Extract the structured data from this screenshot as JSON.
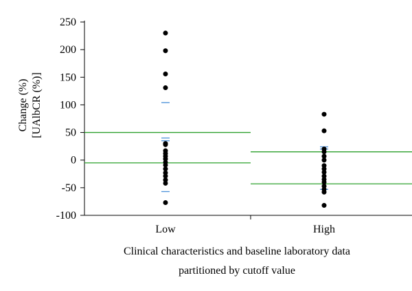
{
  "chart_data": {
    "type": "scatter",
    "ylabel_lines": [
      "Change (%)",
      "[UAlbCR (%)]"
    ],
    "xlabel_lines": [
      "Clinical characteristics and baseline laboratory data",
      "partitioned by cutoff value"
    ],
    "categories": [
      "Low",
      "High"
    ],
    "ylim": [
      -100,
      250
    ],
    "yticks": [
      -100,
      -50,
      0,
      50,
      100,
      150,
      200,
      250
    ],
    "grid": false,
    "series": [
      {
        "category": "Low",
        "values": [
          230,
          198,
          156,
          131,
          30,
          28,
          17,
          12,
          7,
          2,
          -4,
          -9,
          -16,
          -23,
          -29,
          -36,
          -42,
          -77
        ],
        "reference_lines": [
          50,
          -5
        ],
        "blue_markers": [
          104,
          40,
          35,
          -57
        ]
      },
      {
        "category": "High",
        "values": [
          83,
          53,
          20,
          15,
          7,
          0,
          -10,
          -16,
          -22,
          -29,
          -35,
          -40,
          -47,
          -53,
          -58,
          -82
        ],
        "reference_lines": [
          15,
          -43
        ],
        "blue_markers": [
          24,
          20,
          -53
        ]
      }
    ],
    "colors": {
      "points": "#000000",
      "reference_line": "#2ca02c",
      "marker": "#4a90d9",
      "axis": "#000000"
    }
  }
}
